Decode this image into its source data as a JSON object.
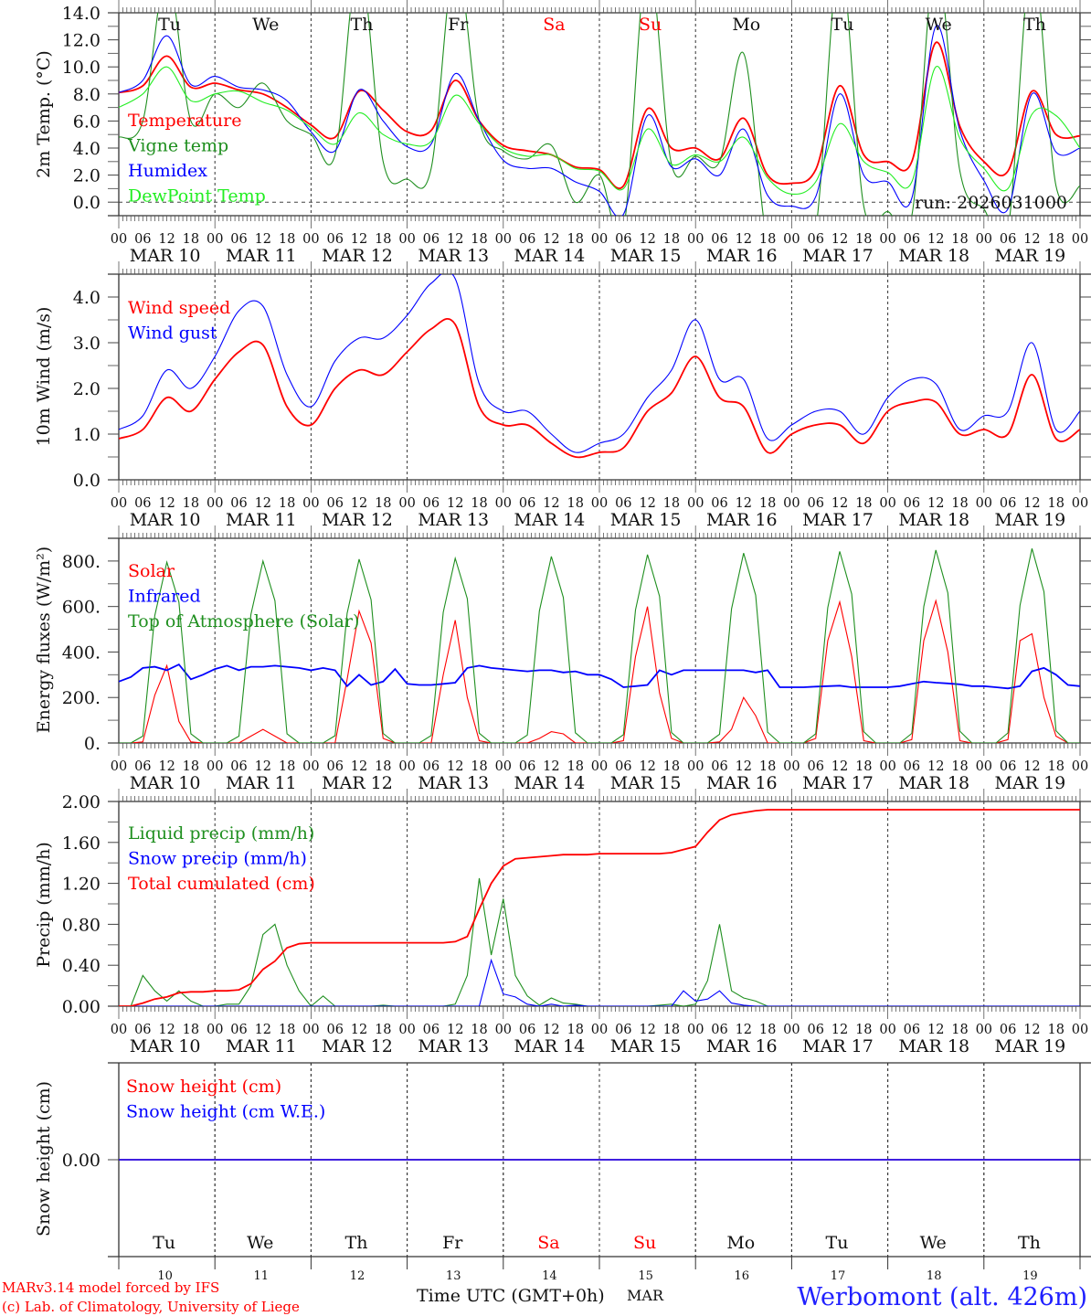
{
  "days": [
    "Tu",
    "We",
    "Th",
    "Fr",
    "Sa",
    "Su",
    "Mo",
    "Tu",
    "We",
    "Th"
  ],
  "weekend_days": [
    "Sa",
    "Su"
  ],
  "dates": [
    "MAR 10",
    "MAR 11",
    "MAR 12",
    "MAR 13",
    "MAR 14",
    "MAR 15",
    "MAR 16",
    "MAR 17",
    "MAR 18",
    "MAR 19"
  ],
  "day_numbers": [
    "10",
    "11",
    "12",
    "13",
    "14",
    "15",
    "16",
    "17",
    "18",
    "19"
  ],
  "hour_labels": [
    "00",
    "06",
    "12",
    "18"
  ],
  "run_label": "run: 2026031000",
  "footer": {
    "model": "MARv3.14 model forced by IFS",
    "copyright": "(c) Lab. of Climatology, University of Liege",
    "xlabel": "Time UTC (GMT+0h)",
    "month": "MAR",
    "station": "Werbomont (alt. 426m)"
  },
  "colors": {
    "red": "#ff0000",
    "green": "#1f8f1f",
    "blue": "#0000ff",
    "lightgreen": "#22ee22",
    "weekend": "#ff0000",
    "station": "#2020ff"
  },
  "chart_data": [
    {
      "type": "line",
      "ylabel": "2m Temp. (°C)",
      "ylim": [
        -1,
        14
      ],
      "yticks": [
        {
          "v": 0,
          "label": "0.0"
        },
        {
          "v": 2,
          "label": "2.0"
        },
        {
          "v": 4,
          "label": "4.0"
        },
        {
          "v": 6,
          "label": "6.0"
        },
        {
          "v": 8,
          "label": "8.0"
        },
        {
          "v": 10,
          "label": "10.0"
        },
        {
          "v": 12,
          "label": "12.0"
        },
        {
          "v": 14,
          "label": "14.0"
        }
      ],
      "x_step_hours": 6,
      "series": [
        {
          "name": "Temperature",
          "color": "red",
          "values": [
            8.1,
            8.6,
            10.8,
            8.5,
            8.8,
            8.3,
            8.0,
            7.0,
            5.7,
            4.8,
            8.2,
            6.8,
            5.2,
            5.3,
            9.0,
            6.0,
            4.2,
            3.8,
            3.5,
            2.6,
            2.4,
            1.2,
            6.9,
            4.0,
            4.0,
            3.2,
            6.2,
            2.0,
            1.4,
            2.4,
            8.6,
            3.5,
            3.0,
            3.0,
            11.8,
            5.6,
            3.0,
            2.3,
            8.2,
            5.0,
            4.9
          ]
        },
        {
          "name": "Vigne temp",
          "color": "green",
          "values": [
            4.8,
            6.0,
            17,
            6.0,
            8.0,
            7.0,
            8.8,
            6.0,
            5.0,
            3.5,
            18,
            3.0,
            1.7,
            2.5,
            18,
            6.0,
            3.8,
            3.2,
            4.2,
            0.0,
            2.0,
            -2,
            18,
            2.8,
            3.4,
            3.0,
            11.0,
            -3,
            -3,
            -2,
            18,
            -0.3,
            -0.7,
            -1,
            18,
            2.3,
            -0.5,
            -2,
            18,
            1.2,
            1.2
          ]
        },
        {
          "name": "Humidex",
          "color": "blue",
          "values": [
            8.1,
            9.0,
            12.3,
            8.7,
            9.3,
            8.5,
            8.3,
            7.5,
            5.2,
            3.8,
            8.3,
            6.0,
            4.1,
            4.3,
            9.5,
            6.0,
            3.1,
            2.5,
            2.5,
            1.5,
            0.8,
            -0.9,
            6.4,
            2.6,
            3.2,
            2.0,
            5.4,
            0.5,
            -0.3,
            0.4,
            8.0,
            2.0,
            1.5,
            0.3,
            13.0,
            5.3,
            1.6,
            -0.5,
            8.0,
            3.7,
            4.0
          ]
        },
        {
          "name": "DewPoint Temp",
          "color": "lightgreen",
          "values": [
            7.0,
            8.0,
            10.0,
            7.5,
            8.0,
            8.2,
            7.4,
            6.8,
            5.5,
            4.3,
            6.6,
            5.0,
            4.3,
            4.5,
            7.9,
            5.8,
            4.0,
            3.4,
            3.5,
            2.5,
            2.3,
            1.0,
            5.4,
            2.8,
            3.5,
            3.0,
            4.8,
            1.8,
            0.6,
            1.5,
            5.8,
            3.0,
            2.2,
            1.5,
            10.0,
            4.7,
            2.5,
            1.0,
            6.5,
            6.4,
            4.0
          ]
        }
      ]
    },
    {
      "type": "line",
      "ylabel": "10m Wind (m/s)",
      "ylim": [
        0,
        4.5
      ],
      "yticks": [
        {
          "v": 0,
          "label": "0.0"
        },
        {
          "v": 1,
          "label": "1.0"
        },
        {
          "v": 2,
          "label": "2.0"
        },
        {
          "v": 3,
          "label": "3.0"
        },
        {
          "v": 4,
          "label": "4.0"
        }
      ],
      "x_step_hours": 6,
      "series": [
        {
          "name": "Wind speed",
          "color": "red",
          "values": [
            0.9,
            1.1,
            1.8,
            1.5,
            2.2,
            2.8,
            2.95,
            1.6,
            1.2,
            2.0,
            2.4,
            2.3,
            2.8,
            3.3,
            3.4,
            1.6,
            1.2,
            1.2,
            0.8,
            0.5,
            0.6,
            0.7,
            1.5,
            1.9,
            2.7,
            1.8,
            1.6,
            0.6,
            1.0,
            1.2,
            1.2,
            0.8,
            1.5,
            1.7,
            1.7,
            1.0,
            1.1,
            1.0,
            2.3,
            0.9,
            1.1
          ]
        },
        {
          "name": "Wind gust",
          "color": "blue",
          "values": [
            1.1,
            1.4,
            2.4,
            2.0,
            2.7,
            3.7,
            3.8,
            2.3,
            1.6,
            2.6,
            3.1,
            3.1,
            3.6,
            4.3,
            4.4,
            2.1,
            1.5,
            1.5,
            1.0,
            0.6,
            0.8,
            1.0,
            1.8,
            2.4,
            3.5,
            2.2,
            2.2,
            0.9,
            1.2,
            1.5,
            1.5,
            1.0,
            1.8,
            2.2,
            2.1,
            1.1,
            1.4,
            1.5,
            3.0,
            1.1,
            1.5
          ]
        }
      ]
    },
    {
      "type": "line",
      "ylabel": "Energy fluxes (W/m²)",
      "ylim": [
        0,
        900
      ],
      "yticks": [
        {
          "v": 0,
          "label": "0."
        },
        {
          "v": 200,
          "label": "200."
        },
        {
          "v": 400,
          "label": "400."
        },
        {
          "v": 600,
          "label": "600."
        },
        {
          "v": 800,
          "label": "800."
        }
      ],
      "x_step_hours": 3,
      "series": [
        {
          "name": "Solar",
          "color": "red",
          "values": [
            0,
            0,
            5,
            210,
            340,
            95,
            5,
            0,
            0,
            0,
            0,
            30,
            60,
            30,
            0,
            0,
            0,
            0,
            0,
            280,
            580,
            440,
            20,
            0,
            0,
            0,
            0,
            300,
            540,
            200,
            10,
            0,
            0,
            0,
            0,
            20,
            50,
            40,
            0,
            0,
            0,
            0,
            10,
            380,
            600,
            220,
            20,
            0,
            0,
            0,
            5,
            60,
            200,
            120,
            0,
            0,
            0,
            0,
            20,
            450,
            620,
            380,
            10,
            0,
            0,
            0,
            15,
            450,
            625,
            400,
            10,
            0,
            0,
            0,
            15,
            450,
            480,
            200,
            30,
            0,
            0
          ]
        },
        {
          "name": "Infrared",
          "color": "blue",
          "values": [
            270,
            290,
            330,
            335,
            320,
            345,
            280,
            300,
            325,
            340,
            320,
            335,
            335,
            340,
            335,
            330,
            320,
            330,
            320,
            250,
            300,
            255,
            270,
            325,
            260,
            255,
            255,
            260,
            265,
            330,
            340,
            330,
            325,
            320,
            315,
            320,
            320,
            310,
            315,
            300,
            300,
            280,
            245,
            250,
            255,
            320,
            300,
            320,
            320,
            320,
            320,
            320,
            320,
            310,
            320,
            245,
            245,
            245,
            248,
            250,
            252,
            245,
            245,
            245,
            245,
            250,
            260,
            270,
            265,
            262,
            258,
            250,
            250,
            245,
            240,
            250,
            315,
            330,
            300,
            255,
            250
          ]
        },
        {
          "name": "Top of Atmosphere (Solar)",
          "color": "green",
          "values": [
            0,
            0,
            30,
            560,
            795,
            620,
            40,
            0,
            0,
            0,
            30,
            565,
            800,
            625,
            40,
            0,
            0,
            0,
            32,
            570,
            808,
            630,
            42,
            0,
            0,
            0,
            33,
            575,
            812,
            635,
            43,
            0,
            0,
            0,
            35,
            580,
            820,
            640,
            45,
            0,
            0,
            0,
            36,
            585,
            828,
            645,
            46,
            0,
            0,
            0,
            38,
            590,
            835,
            650,
            48,
            0,
            0,
            0,
            40,
            595,
            842,
            655,
            50,
            0,
            0,
            0,
            42,
            600,
            848,
            660,
            52,
            0,
            0,
            0,
            44,
            605,
            855,
            665,
            54,
            0,
            0
          ]
        }
      ]
    },
    {
      "type": "line",
      "ylabel": "Precip (mm/h)",
      "ylim": [
        0,
        2.0
      ],
      "yticks": [
        {
          "v": 0,
          "label": "0.00"
        },
        {
          "v": 0.4,
          "label": "0.40"
        },
        {
          "v": 0.8,
          "label": "0.80"
        },
        {
          "v": 1.2,
          "label": "1.20"
        },
        {
          "v": 1.6,
          "label": "1.60"
        },
        {
          "v": 2.0,
          "label": "2.00"
        }
      ],
      "x_step_hours": 3,
      "series": [
        {
          "name": "Liquid precip (mm/h)",
          "color": "green",
          "values": [
            0,
            0,
            0.3,
            0.15,
            0.05,
            0.15,
            0.05,
            0,
            0,
            0.02,
            0.02,
            0.2,
            0.7,
            0.8,
            0.4,
            0.15,
            0,
            0.1,
            0,
            0,
            0,
            0,
            0.01,
            0,
            0,
            0,
            0,
            0,
            0.02,
            0.3,
            1.25,
            0.5,
            1.05,
            0.3,
            0.1,
            0.01,
            0.08,
            0.03,
            0.02,
            0,
            0,
            0,
            0,
            0,
            0,
            0.01,
            0.02,
            0,
            0.02,
            0.25,
            0.8,
            0.15,
            0.08,
            0.05,
            0,
            0,
            0,
            0,
            0,
            0,
            0,
            0,
            0,
            0,
            0,
            0,
            0,
            0,
            0,
            0,
            0,
            0,
            0,
            0,
            0,
            0,
            0,
            0,
            0,
            0,
            0
          ]
        },
        {
          "name": "Snow precip (mm/h)",
          "color": "blue",
          "values": [
            0,
            0,
            0,
            0,
            0,
            0,
            0,
            0,
            0,
            0,
            0,
            0,
            0,
            0,
            0,
            0,
            0,
            0,
            0,
            0,
            0,
            0,
            0,
            0,
            0,
            0,
            0,
            0,
            0,
            0,
            0,
            0.45,
            0.12,
            0.09,
            0.02,
            0,
            0.02,
            0,
            0.01,
            0,
            0,
            0,
            0,
            0,
            0,
            0,
            0,
            0.15,
            0.05,
            0.07,
            0.15,
            0.03,
            0.01,
            0,
            0,
            0,
            0,
            0,
            0,
            0,
            0,
            0,
            0,
            0,
            0,
            0,
            0,
            0,
            0,
            0,
            0,
            0,
            0,
            0,
            0,
            0,
            0,
            0,
            0,
            0,
            0
          ]
        },
        {
          "name": "Total cumulated (cm)",
          "color": "red",
          "values": [
            0,
            0,
            0.03,
            0.07,
            0.09,
            0.13,
            0.14,
            0.14,
            0.15,
            0.15,
            0.16,
            0.22,
            0.36,
            0.44,
            0.57,
            0.61,
            0.62,
            0.62,
            0.62,
            0.62,
            0.62,
            0.62,
            0.62,
            0.62,
            0.62,
            0.62,
            0.62,
            0.62,
            0.63,
            0.68,
            0.95,
            1.2,
            1.37,
            1.44,
            1.45,
            1.46,
            1.47,
            1.48,
            1.48,
            1.48,
            1.49,
            1.49,
            1.49,
            1.49,
            1.49,
            1.49,
            1.5,
            1.53,
            1.56,
            1.7,
            1.82,
            1.87,
            1.89,
            1.91,
            1.92,
            1.92,
            1.92,
            1.92,
            1.92,
            1.92,
            1.92,
            1.92,
            1.92,
            1.92,
            1.92,
            1.92,
            1.92,
            1.92,
            1.92,
            1.92,
            1.92,
            1.92,
            1.92,
            1.92,
            1.92,
            1.92,
            1.92,
            1.92,
            1.92,
            1.92,
            1.92
          ]
        }
      ]
    },
    {
      "type": "line",
      "ylabel": "Snow height (cm)",
      "ylim": [
        -1,
        1
      ],
      "yticks": [
        {
          "v": 0,
          "label": "0.00"
        }
      ],
      "x_step_hours": 240,
      "series": [
        {
          "name": "Snow height (cm)",
          "color": "red",
          "values": [
            0,
            0
          ]
        },
        {
          "name": "Snow height (cm W.E.)",
          "color": "blue",
          "values": [
            0,
            0
          ]
        }
      ]
    }
  ]
}
